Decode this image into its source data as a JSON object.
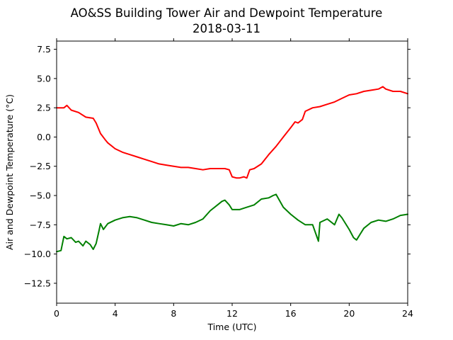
{
  "chart_data": {
    "type": "line",
    "title": "AO&SS Building Tower Air and Dewpoint Temperature",
    "subtitle": "2018-03-11",
    "xlabel": "Time (UTC)",
    "ylabel": "Air and Dewpoint Temperature (°C)",
    "xlim": [
      0,
      24
    ],
    "ylim": [
      -14.2,
      8.2
    ],
    "xticks": [
      0,
      4,
      8,
      12,
      16,
      20,
      24
    ],
    "xtick_labels": [
      "0",
      "4",
      "8",
      "12",
      "16",
      "20",
      "24"
    ],
    "yticks": [
      7.5,
      5.0,
      2.5,
      0.0,
      -2.5,
      -5.0,
      -7.5,
      -10.0,
      -12.5
    ],
    "ytick_labels": [
      "7.5",
      "5.0",
      "2.5",
      "0.0",
      "−2.5",
      "−5.0",
      "−7.5",
      "−10.0",
      "−12.5"
    ],
    "grid": false,
    "legend": "none",
    "series": [
      {
        "color": "#ff0000",
        "x": [
          0.0,
          0.5,
          0.7,
          1.0,
          1.5,
          2.0,
          2.5,
          2.7,
          3.0,
          3.3,
          3.5,
          4.0,
          4.5,
          5.0,
          5.5,
          6.0,
          6.5,
          7.0,
          7.5,
          8.0,
          8.5,
          9.0,
          9.5,
          10.0,
          10.5,
          11.0,
          11.5,
          11.8,
          12.0,
          12.3,
          12.5,
          12.8,
          13.0,
          13.2,
          13.5,
          14.0,
          14.5,
          15.0,
          15.5,
          16.0,
          16.3,
          16.5,
          16.8,
          17.0,
          17.5,
          18.0,
          18.5,
          19.0,
          19.5,
          20.0,
          20.5,
          21.0,
          21.5,
          22.0,
          22.3,
          22.5,
          23.0,
          23.5,
          24.0
        ],
        "values": [
          2.5,
          2.5,
          2.7,
          2.3,
          2.1,
          1.7,
          1.6,
          1.2,
          0.3,
          -0.2,
          -0.5,
          -1.0,
          -1.3,
          -1.5,
          -1.7,
          -1.9,
          -2.1,
          -2.3,
          -2.4,
          -2.5,
          -2.6,
          -2.6,
          -2.7,
          -2.8,
          -2.7,
          -2.7,
          -2.7,
          -2.8,
          -3.4,
          -3.5,
          -3.5,
          -3.4,
          -3.5,
          -2.8,
          -2.7,
          -2.3,
          -1.5,
          -0.8,
          0.0,
          0.8,
          1.3,
          1.2,
          1.5,
          2.2,
          2.5,
          2.6,
          2.8,
          3.0,
          3.3,
          3.6,
          3.7,
          3.9,
          4.0,
          4.1,
          4.3,
          4.1,
          3.9,
          3.9,
          3.7
        ]
      },
      {
        "color": "#008000",
        "x": [
          0.0,
          0.3,
          0.5,
          0.7,
          1.0,
          1.3,
          1.5,
          1.8,
          2.0,
          2.3,
          2.5,
          2.7,
          2.9,
          3.0,
          3.2,
          3.5,
          4.0,
          4.5,
          5.0,
          5.5,
          6.0,
          6.5,
          7.0,
          7.5,
          8.0,
          8.5,
          9.0,
          9.5,
          10.0,
          10.5,
          11.0,
          11.3,
          11.5,
          11.8,
          12.0,
          12.5,
          13.0,
          13.5,
          14.0,
          14.5,
          14.8,
          15.0,
          15.5,
          16.0,
          16.5,
          17.0,
          17.5,
          17.9,
          18.0,
          18.5,
          19.0,
          19.3,
          19.5,
          20.0,
          20.3,
          20.5,
          21.0,
          21.5,
          22.0,
          22.5,
          23.0,
          23.5,
          24.0
        ],
        "values": [
          -9.8,
          -9.7,
          -8.5,
          -8.7,
          -8.6,
          -9.0,
          -8.9,
          -9.3,
          -8.9,
          -9.2,
          -9.6,
          -9.1,
          -8.0,
          -7.4,
          -7.9,
          -7.4,
          -7.1,
          -6.9,
          -6.8,
          -6.9,
          -7.1,
          -7.3,
          -7.4,
          -7.5,
          -7.6,
          -7.4,
          -7.5,
          -7.3,
          -7.0,
          -6.3,
          -5.8,
          -5.5,
          -5.4,
          -5.8,
          -6.2,
          -6.2,
          -6.0,
          -5.8,
          -5.3,
          -5.2,
          -5.0,
          -4.9,
          -6.0,
          -6.6,
          -7.1,
          -7.5,
          -7.5,
          -8.9,
          -7.3,
          -7.0,
          -7.5,
          -6.6,
          -6.9,
          -7.9,
          -8.6,
          -8.8,
          -7.8,
          -7.3,
          -7.1,
          -7.2,
          -7.0,
          -6.7,
          -6.6
        ]
      }
    ]
  }
}
